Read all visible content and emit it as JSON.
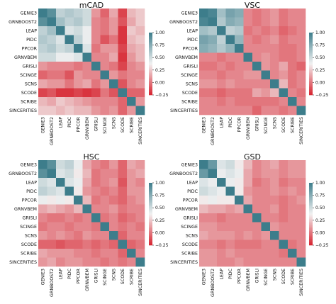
{
  "chart_data": [
    {
      "type": "heatmap",
      "title": "mCAD",
      "labels": [
        "GENIE3",
        "GRNBOOST2",
        "LEAP",
        "PIDC",
        "PPCOR",
        "GRNVBEM",
        "GRISLI",
        "SCINGE",
        "SCNS",
        "SCODE",
        "SCRIBE",
        "SINCERITIES"
      ],
      "colorbar": {
        "min": -0.25,
        "max": 1.0,
        "ticks": [
          "1.00",
          "0.75",
          "0.50",
          "0.25",
          "0.00",
          "−0.25"
        ]
      },
      "values": [
        [
          1.0,
          0.9,
          0.55,
          0.6,
          0.55,
          0.5,
          0.1,
          -0.05,
          0.15,
          -0.15,
          0.2,
          0.25
        ],
        [
          0.9,
          1.0,
          0.65,
          0.55,
          0.6,
          0.5,
          0.05,
          0.0,
          0.1,
          -0.1,
          0.15,
          0.25
        ],
        [
          0.55,
          0.65,
          1.0,
          0.45,
          0.5,
          0.4,
          0.05,
          0.0,
          0.1,
          -0.2,
          0.25,
          0.2
        ],
        [
          0.6,
          0.55,
          0.45,
          1.0,
          0.55,
          0.4,
          0.05,
          -0.1,
          0.0,
          -0.2,
          0.2,
          0.25
        ],
        [
          0.55,
          0.6,
          0.5,
          0.55,
          1.0,
          0.45,
          0.0,
          0.1,
          0.1,
          -0.15,
          0.15,
          0.2
        ],
        [
          0.5,
          0.5,
          0.4,
          0.4,
          0.45,
          1.0,
          0.05,
          0.05,
          0.15,
          -0.2,
          0.1,
          0.2
        ],
        [
          0.1,
          0.05,
          0.05,
          0.05,
          0.0,
          0.05,
          1.0,
          0.05,
          0.0,
          -0.15,
          0.05,
          0.1
        ],
        [
          -0.05,
          0.0,
          0.0,
          -0.1,
          0.1,
          0.05,
          0.05,
          1.0,
          0.1,
          0.0,
          0.05,
          0.05
        ],
        [
          0.15,
          0.1,
          0.1,
          0.0,
          0.1,
          0.15,
          0.0,
          0.1,
          1.0,
          -0.1,
          0.05,
          0.1
        ],
        [
          -0.15,
          -0.1,
          -0.2,
          -0.2,
          -0.15,
          -0.2,
          -0.15,
          0.0,
          -0.1,
          1.0,
          -0.05,
          -0.05
        ],
        [
          0.2,
          0.15,
          0.25,
          0.2,
          0.15,
          0.1,
          0.05,
          0.05,
          0.05,
          -0.05,
          1.0,
          0.1
        ],
        [
          0.25,
          0.25,
          0.2,
          0.25,
          0.2,
          0.2,
          0.1,
          0.05,
          0.1,
          -0.05,
          0.1,
          1.0
        ]
      ]
    },
    {
      "type": "heatmap",
      "title": "VSC",
      "labels": [
        "GENIE3",
        "GRNBOOST2",
        "LEAP",
        "PIDC",
        "PPCOR",
        "GRNVBEM",
        "GRISLI",
        "SCINGE",
        "SCNS",
        "SCODE",
        "SCRIBE",
        "SINCERITIES"
      ],
      "colorbar": {
        "min": -0.25,
        "max": 1.0,
        "ticks": [
          "1.00",
          "0.75",
          "0.50",
          "0.25",
          "0.00",
          "−0.25"
        ]
      },
      "values": [
        [
          1.0,
          0.95,
          0.65,
          0.8,
          0.75,
          0.05,
          0.0,
          0.05,
          0.1,
          0.0,
          0.05,
          0.05
        ],
        [
          0.95,
          1.0,
          0.6,
          0.75,
          0.7,
          0.05,
          0.0,
          0.05,
          0.1,
          0.0,
          0.05,
          0.05
        ],
        [
          0.65,
          0.6,
          1.0,
          0.55,
          0.6,
          0.0,
          0.05,
          0.0,
          0.05,
          -0.05,
          0.0,
          0.05
        ],
        [
          0.8,
          0.75,
          0.55,
          1.0,
          0.7,
          0.05,
          0.0,
          0.05,
          0.1,
          0.0,
          0.05,
          0.05
        ],
        [
          0.75,
          0.7,
          0.6,
          0.7,
          1.0,
          0.05,
          0.05,
          0.05,
          0.05,
          0.0,
          0.0,
          0.05
        ],
        [
          0.05,
          0.05,
          0.0,
          0.05,
          0.05,
          1.0,
          0.05,
          0.1,
          0.05,
          0.0,
          0.0,
          0.05
        ],
        [
          0.0,
          0.0,
          0.05,
          0.0,
          0.05,
          0.05,
          1.0,
          0.1,
          0.05,
          0.15,
          0.0,
          -0.05
        ],
        [
          0.05,
          0.05,
          0.0,
          0.05,
          0.05,
          0.1,
          0.1,
          1.0,
          0.05,
          0.1,
          0.0,
          0.05
        ],
        [
          0.1,
          0.1,
          0.05,
          0.1,
          0.05,
          0.05,
          0.05,
          0.05,
          1.0,
          0.2,
          0.0,
          0.05
        ],
        [
          0.0,
          0.0,
          -0.05,
          0.0,
          0.0,
          0.0,
          0.15,
          0.1,
          0.2,
          1.0,
          0.05,
          0.0
        ],
        [
          0.05,
          0.05,
          0.0,
          0.05,
          0.0,
          0.0,
          0.0,
          0.0,
          0.0,
          0.05,
          1.0,
          0.05
        ],
        [
          0.05,
          0.05,
          0.05,
          0.05,
          0.05,
          0.05,
          -0.05,
          0.05,
          0.05,
          0.0,
          0.05,
          1.0
        ]
      ]
    },
    {
      "type": "heatmap",
      "title": "HSC",
      "labels": [
        "GENIE3",
        "GRNBOOST2",
        "LEAP",
        "PIDC",
        "PPCOR",
        "GRNVBEM",
        "GRISLI",
        "SCINGE",
        "SCNS",
        "SCODE",
        "SCRIBE",
        "SINCERITIES"
      ],
      "colorbar": {
        "min": -0.25,
        "max": 1.0,
        "ticks": [
          "1.00",
          "0.75",
          "0.50",
          "0.25",
          "0.00",
          "−0.25"
        ]
      },
      "values": [
        [
          1.0,
          0.9,
          0.5,
          0.55,
          0.4,
          0.15,
          0.05,
          0.0,
          0.1,
          -0.05,
          0.15,
          0.1
        ],
        [
          0.9,
          1.0,
          0.45,
          0.5,
          0.35,
          0.2,
          0.0,
          0.05,
          0.05,
          -0.05,
          0.1,
          0.15
        ],
        [
          0.5,
          0.45,
          1.0,
          0.45,
          0.4,
          0.15,
          0.0,
          0.05,
          0.1,
          -0.1,
          0.1,
          0.05
        ],
        [
          0.55,
          0.5,
          0.45,
          1.0,
          0.35,
          0.1,
          0.05,
          0.0,
          0.05,
          -0.05,
          0.1,
          0.1
        ],
        [
          0.4,
          0.35,
          0.4,
          0.35,
          1.0,
          0.2,
          0.0,
          0.05,
          0.0,
          -0.05,
          0.05,
          0.1
        ],
        [
          0.15,
          0.2,
          0.15,
          0.1,
          0.2,
          1.0,
          0.05,
          0.05,
          0.1,
          0.0,
          0.05,
          0.05
        ],
        [
          0.05,
          0.0,
          0.0,
          0.05,
          0.0,
          0.05,
          1.0,
          0.0,
          0.05,
          -0.05,
          0.0,
          0.05
        ],
        [
          0.0,
          0.05,
          0.05,
          0.0,
          0.05,
          0.05,
          0.0,
          1.0,
          0.05,
          0.0,
          0.05,
          0.0
        ],
        [
          0.1,
          0.05,
          0.1,
          0.05,
          0.0,
          0.1,
          0.05,
          0.05,
          1.0,
          -0.05,
          0.05,
          0.05
        ],
        [
          -0.05,
          -0.05,
          -0.1,
          -0.05,
          -0.05,
          0.0,
          -0.05,
          0.0,
          -0.05,
          1.0,
          -0.05,
          0.0
        ],
        [
          0.15,
          0.1,
          0.1,
          0.1,
          0.05,
          0.05,
          0.0,
          0.05,
          0.05,
          -0.05,
          1.0,
          0.05
        ],
        [
          0.1,
          0.15,
          0.05,
          0.1,
          0.1,
          0.05,
          0.05,
          0.0,
          0.05,
          0.0,
          0.05,
          1.0
        ]
      ]
    },
    {
      "type": "heatmap",
      "title": "GSD",
      "labels": [
        "GENIE3",
        "GRNBOOST2",
        "LEAP",
        "PIDC",
        "PPCOR",
        "GRNVBEM",
        "GRISLI",
        "SCINGE",
        "SCNS",
        "SCODE",
        "SCRIBE",
        "SINCERITIES"
      ],
      "colorbar": {
        "min": -0.25,
        "max": 1.0,
        "ticks": [
          "1.00",
          "0.75",
          "0.50",
          "0.25",
          "0.00",
          "−0.25"
        ]
      },
      "values": [
        [
          1.0,
          0.85,
          0.45,
          0.5,
          0.35,
          0.2,
          0.05,
          0.1,
          0.15,
          0.05,
          0.1,
          0.1
        ],
        [
          0.85,
          1.0,
          0.4,
          0.45,
          0.4,
          0.15,
          0.05,
          0.1,
          0.1,
          0.05,
          0.1,
          0.1
        ],
        [
          0.45,
          0.4,
          1.0,
          0.4,
          0.35,
          0.15,
          0.0,
          0.05,
          0.1,
          0.0,
          0.05,
          0.05
        ],
        [
          0.5,
          0.45,
          0.4,
          1.0,
          0.35,
          0.1,
          0.05,
          0.05,
          0.1,
          0.05,
          0.1,
          0.05
        ],
        [
          0.35,
          0.4,
          0.35,
          0.35,
          1.0,
          0.15,
          0.05,
          0.05,
          0.05,
          0.0,
          0.05,
          0.1
        ],
        [
          0.2,
          0.15,
          0.15,
          0.1,
          0.15,
          1.0,
          0.05,
          0.05,
          0.1,
          0.0,
          0.05,
          0.05
        ],
        [
          0.05,
          0.05,
          0.0,
          0.05,
          0.05,
          0.05,
          1.0,
          0.05,
          0.05,
          0.0,
          0.05,
          0.05
        ],
        [
          0.1,
          0.1,
          0.05,
          0.05,
          0.05,
          0.05,
          0.05,
          1.0,
          0.1,
          0.05,
          0.05,
          0.05
        ],
        [
          0.15,
          0.1,
          0.1,
          0.1,
          0.05,
          0.1,
          0.05,
          0.1,
          1.0,
          0.05,
          0.05,
          0.05
        ],
        [
          0.05,
          0.05,
          0.0,
          0.05,
          0.0,
          0.0,
          0.0,
          0.05,
          0.05,
          1.0,
          0.0,
          0.05
        ],
        [
          0.1,
          0.1,
          0.05,
          0.1,
          0.05,
          0.05,
          0.05,
          0.05,
          0.05,
          0.0,
          1.0,
          0.05
        ],
        [
          0.1,
          0.1,
          0.05,
          0.05,
          0.1,
          0.05,
          0.05,
          0.05,
          0.05,
          0.05,
          0.05,
          1.0
        ]
      ]
    }
  ],
  "colors": {
    "low": "#d7232f",
    "mid": "#f2f2f2",
    "high": "#3d7d8b"
  }
}
